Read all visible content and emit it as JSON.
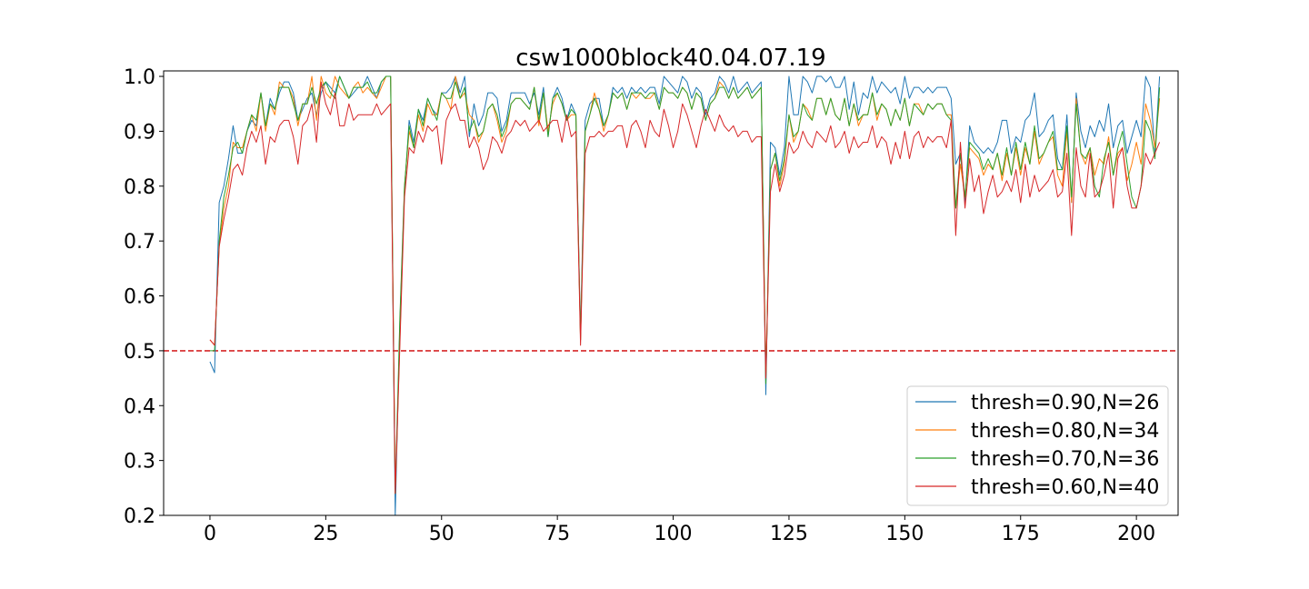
{
  "chart_data": {
    "type": "line",
    "title": "csw1000block40.04.07.19",
    "xlabel": "",
    "ylabel": "",
    "xlim": [
      -10,
      209
    ],
    "ylim": [
      0.2,
      1.01
    ],
    "xticks": [
      0,
      25,
      50,
      75,
      100,
      125,
      150,
      175,
      200
    ],
    "yticks": [
      0.2,
      0.3,
      0.4,
      0.5,
      0.6,
      0.7,
      0.8,
      0.9,
      1.0
    ],
    "xtick_labels": [
      "0",
      "25",
      "50",
      "75",
      "100",
      "125",
      "150",
      "175",
      "200"
    ],
    "ytick_labels": [
      "0.2",
      "0.3",
      "0.4",
      "0.5",
      "0.6",
      "0.7",
      "0.8",
      "0.9",
      "1.0"
    ],
    "grid": false,
    "legend_position": "lower-right",
    "reference_line": {
      "y": 0.5,
      "color": "#d62728",
      "style": "dashed"
    },
    "series": [
      {
        "name": "thresh=0.90,N=26",
        "color": "#1f77b4",
        "x_start": 0,
        "values": [
          0.48,
          0.46,
          0.77,
          0.8,
          0.85,
          0.91,
          0.86,
          0.86,
          0.9,
          0.92,
          0.91,
          0.97,
          0.91,
          0.96,
          0.94,
          0.97,
          0.99,
          0.99,
          0.97,
          0.92,
          0.94,
          0.96,
          0.97,
          0.93,
          0.97,
          0.99,
          0.98,
          0.97,
          1.0,
          0.98,
          0.96,
          0.97,
          0.98,
          0.98,
          1.0,
          0.98,
          0.96,
          0.99,
          1.0,
          1.0,
          0.2,
          0.55,
          0.79,
          0.92,
          0.88,
          0.94,
          0.92,
          0.96,
          0.94,
          0.93,
          0.97,
          0.97,
          0.98,
          1.0,
          0.97,
          1.0,
          0.89,
          0.95,
          0.91,
          0.93,
          0.97,
          0.97,
          0.96,
          0.9,
          0.92,
          0.97,
          0.97,
          0.97,
          0.97,
          0.95,
          0.97,
          0.93,
          0.98,
          0.89,
          0.96,
          0.98,
          0.96,
          0.92,
          0.95,
          0.93,
          0.53,
          0.92,
          0.95,
          0.96,
          0.96,
          0.91,
          0.93,
          0.98,
          0.97,
          0.98,
          0.96,
          0.98,
          0.97,
          0.98,
          0.97,
          0.98,
          0.98,
          0.95,
          1.0,
          0.99,
          0.98,
          0.97,
          1.0,
          0.99,
          0.96,
          0.98,
          0.97,
          0.93,
          0.96,
          0.97,
          1.0,
          0.99,
          0.97,
          1.0,
          0.97,
          0.98,
          0.99,
          0.97,
          0.98,
          0.99,
          0.42,
          0.88,
          0.87,
          0.82,
          0.87,
          1.0,
          0.93,
          0.93,
          1.0,
          0.99,
          0.97,
          1.0,
          1.0,
          0.99,
          1.0,
          0.98,
          0.98,
          1.0,
          0.94,
          0.99,
          0.93,
          0.97,
          0.96,
          1.0,
          0.97,
          0.99,
          0.98,
          0.97,
          0.98,
          0.95,
          1.0,
          0.96,
          0.98,
          0.98,
          0.97,
          0.98,
          0.97,
          0.98,
          0.98,
          0.98,
          0.96,
          0.84,
          0.86,
          0.77,
          0.91,
          0.88,
          0.87,
          0.86,
          0.87,
          0.86,
          0.88,
          0.92,
          0.92,
          0.86,
          0.89,
          0.88,
          0.92,
          0.93,
          0.97,
          0.89,
          0.9,
          0.92,
          0.93,
          0.85,
          0.83,
          0.93,
          0.77,
          0.97,
          0.9,
          0.87,
          0.91,
          0.89,
          0.92,
          0.9,
          0.95,
          0.87,
          0.91,
          0.92,
          0.86,
          0.89,
          0.92,
          0.89,
          1.0,
          0.98,
          0.86,
          1.0
        ]
      },
      {
        "name": "thresh=0.80,N=34",
        "color": "#ff7f0e",
        "x_start": 0,
        "values": [
          0.52,
          0.51,
          0.69,
          0.76,
          0.8,
          0.88,
          0.87,
          0.87,
          0.9,
          0.93,
          0.9,
          0.97,
          0.9,
          0.95,
          0.93,
          0.99,
          0.98,
          0.98,
          0.96,
          0.91,
          0.95,
          0.95,
          1.0,
          0.92,
          1.0,
          0.97,
          0.96,
          1.0,
          0.98,
          0.97,
          0.96,
          0.98,
          0.99,
          0.97,
          0.98,
          0.97,
          0.96,
          0.98,
          1.0,
          1.0,
          0.24,
          0.52,
          0.8,
          0.9,
          0.87,
          0.93,
          0.9,
          0.95,
          0.93,
          0.93,
          0.97,
          0.96,
          0.94,
          1.0,
          0.96,
          0.97,
          0.93,
          0.92,
          0.88,
          0.9,
          0.94,
          0.95,
          0.92,
          0.88,
          0.9,
          0.95,
          0.96,
          0.96,
          0.95,
          0.94,
          0.98,
          0.91,
          0.97,
          0.9,
          0.95,
          0.97,
          0.95,
          0.92,
          0.93,
          0.93,
          0.52,
          0.9,
          0.93,
          0.97,
          0.94,
          0.9,
          0.93,
          0.97,
          0.96,
          0.97,
          0.94,
          0.97,
          0.96,
          0.97,
          0.96,
          0.96,
          0.97,
          0.94,
          0.98,
          0.97,
          0.97,
          0.96,
          0.98,
          0.97,
          0.94,
          0.97,
          0.96,
          0.92,
          0.95,
          0.96,
          0.99,
          0.98,
          0.96,
          0.98,
          0.96,
          0.97,
          0.98,
          0.96,
          0.97,
          0.98,
          0.45,
          0.83,
          0.86,
          0.8,
          0.84,
          0.93,
          0.88,
          0.9,
          0.95,
          0.94,
          0.92,
          0.96,
          0.96,
          0.93,
          0.96,
          0.93,
          0.92,
          0.96,
          0.91,
          0.95,
          0.91,
          0.93,
          0.93,
          0.97,
          0.92,
          0.95,
          0.94,
          0.91,
          0.94,
          0.92,
          0.96,
          0.91,
          0.95,
          0.95,
          0.93,
          0.95,
          0.94,
          0.95,
          0.95,
          0.93,
          0.93,
          0.76,
          0.84,
          0.78,
          0.87,
          0.86,
          0.85,
          0.82,
          0.84,
          0.83,
          0.86,
          0.81,
          0.86,
          0.82,
          0.87,
          0.82,
          0.87,
          0.84,
          0.9,
          0.84,
          0.86,
          0.88,
          0.89,
          0.82,
          0.8,
          0.9,
          0.77,
          0.96,
          0.86,
          0.84,
          0.87,
          0.82,
          0.85,
          0.84,
          0.89,
          0.82,
          0.86,
          0.87,
          0.81,
          0.84,
          0.88,
          0.84,
          0.95,
          0.92,
          0.87,
          0.96
        ]
      },
      {
        "name": "thresh=0.70,N=36",
        "color": "#2ca02c",
        "x_start": 0,
        "values": [
          0.5,
          0.5,
          0.7,
          0.78,
          0.82,
          0.87,
          0.88,
          0.86,
          0.9,
          0.93,
          0.92,
          0.97,
          0.91,
          0.95,
          0.94,
          0.98,
          0.98,
          0.98,
          0.95,
          0.92,
          0.95,
          0.95,
          0.98,
          0.95,
          0.98,
          0.99,
          0.97,
          0.96,
          1.0,
          0.98,
          0.96,
          0.98,
          0.98,
          0.98,
          0.99,
          0.97,
          0.97,
          0.99,
          1.0,
          1.0,
          0.24,
          0.56,
          0.8,
          0.91,
          0.87,
          0.94,
          0.91,
          0.96,
          0.94,
          0.92,
          0.97,
          0.96,
          0.96,
          0.99,
          0.96,
          0.98,
          0.9,
          0.92,
          0.89,
          0.9,
          0.94,
          0.95,
          0.93,
          0.89,
          0.91,
          0.95,
          0.96,
          0.96,
          0.95,
          0.94,
          0.98,
          0.92,
          0.97,
          0.89,
          0.96,
          0.97,
          0.95,
          0.92,
          0.94,
          0.93,
          0.52,
          0.9,
          0.93,
          0.96,
          0.94,
          0.91,
          0.93,
          0.97,
          0.96,
          0.97,
          0.94,
          0.97,
          0.97,
          0.97,
          0.96,
          0.97,
          0.97,
          0.94,
          0.98,
          0.97,
          0.97,
          0.96,
          0.98,
          0.97,
          0.94,
          0.97,
          0.96,
          0.92,
          0.95,
          0.96,
          0.98,
          0.98,
          0.96,
          0.98,
          0.96,
          0.97,
          0.98,
          0.96,
          0.97,
          0.98,
          0.44,
          0.83,
          0.86,
          0.81,
          0.85,
          0.93,
          0.89,
          0.9,
          0.95,
          0.93,
          0.92,
          0.96,
          0.96,
          0.93,
          0.96,
          0.93,
          0.92,
          0.96,
          0.91,
          0.95,
          0.92,
          0.93,
          0.93,
          0.97,
          0.93,
          0.95,
          0.94,
          0.91,
          0.94,
          0.92,
          0.96,
          0.91,
          0.95,
          0.94,
          0.93,
          0.95,
          0.94,
          0.95,
          0.95,
          0.93,
          0.92,
          0.76,
          0.86,
          0.78,
          0.88,
          0.87,
          0.86,
          0.83,
          0.85,
          0.83,
          0.86,
          0.82,
          0.87,
          0.82,
          0.88,
          0.83,
          0.88,
          0.84,
          0.91,
          0.85,
          0.86,
          0.88,
          0.9,
          0.83,
          0.83,
          0.91,
          0.78,
          0.95,
          0.86,
          0.85,
          0.87,
          0.8,
          0.78,
          0.85,
          0.88,
          0.82,
          0.87,
          0.9,
          0.84,
          0.78,
          0.76,
          0.8,
          0.92,
          0.9,
          0.85,
          0.98
        ]
      },
      {
        "name": "thresh=0.60,N=40",
        "color": "#d62728",
        "x_start": 0,
        "values": [
          0.52,
          0.51,
          0.69,
          0.74,
          0.78,
          0.83,
          0.84,
          0.82,
          0.87,
          0.9,
          0.88,
          0.91,
          0.84,
          0.89,
          0.88,
          0.91,
          0.92,
          0.92,
          0.89,
          0.84,
          0.91,
          0.92,
          0.95,
          0.88,
          0.99,
          0.95,
          0.93,
          0.97,
          0.91,
          0.91,
          0.95,
          0.92,
          0.93,
          0.93,
          0.93,
          0.93,
          0.95,
          0.93,
          0.94,
          0.95,
          0.24,
          0.51,
          0.78,
          0.87,
          0.86,
          0.9,
          0.88,
          0.91,
          0.9,
          0.91,
          0.84,
          0.92,
          0.94,
          0.95,
          0.92,
          0.92,
          0.87,
          0.89,
          0.87,
          0.83,
          0.85,
          0.89,
          0.88,
          0.86,
          0.89,
          0.9,
          0.92,
          0.91,
          0.92,
          0.9,
          0.91,
          0.92,
          0.9,
          0.91,
          0.92,
          0.92,
          0.88,
          0.93,
          0.89,
          0.9,
          0.51,
          0.86,
          0.89,
          0.89,
          0.9,
          0.89,
          0.9,
          0.9,
          0.91,
          0.91,
          0.87,
          0.91,
          0.92,
          0.9,
          0.87,
          0.92,
          0.9,
          0.89,
          0.94,
          0.91,
          0.87,
          0.9,
          0.95,
          0.93,
          0.9,
          0.87,
          0.91,
          0.94,
          0.92,
          0.9,
          0.93,
          0.91,
          0.9,
          0.91,
          0.89,
          0.9,
          0.9,
          0.88,
          0.89,
          0.89,
          0.45,
          0.79,
          0.84,
          0.79,
          0.82,
          0.88,
          0.86,
          0.87,
          0.9,
          0.88,
          0.87,
          0.9,
          0.89,
          0.88,
          0.91,
          0.87,
          0.88,
          0.9,
          0.86,
          0.89,
          0.87,
          0.88,
          0.88,
          0.91,
          0.87,
          0.89,
          0.88,
          0.84,
          0.88,
          0.85,
          0.9,
          0.85,
          0.89,
          0.9,
          0.87,
          0.89,
          0.88,
          0.89,
          0.89,
          0.87,
          0.92,
          0.71,
          0.88,
          0.76,
          0.85,
          0.79,
          0.82,
          0.75,
          0.79,
          0.82,
          0.78,
          0.79,
          0.81,
          0.79,
          0.83,
          0.77,
          0.84,
          0.78,
          0.82,
          0.79,
          0.8,
          0.81,
          0.83,
          0.78,
          0.79,
          0.86,
          0.71,
          0.87,
          0.8,
          0.78,
          0.86,
          0.78,
          0.79,
          0.82,
          0.86,
          0.76,
          0.85,
          0.87,
          0.8,
          0.76,
          0.76,
          0.8,
          0.86,
          0.84,
          0.86,
          0.88
        ]
      }
    ]
  }
}
